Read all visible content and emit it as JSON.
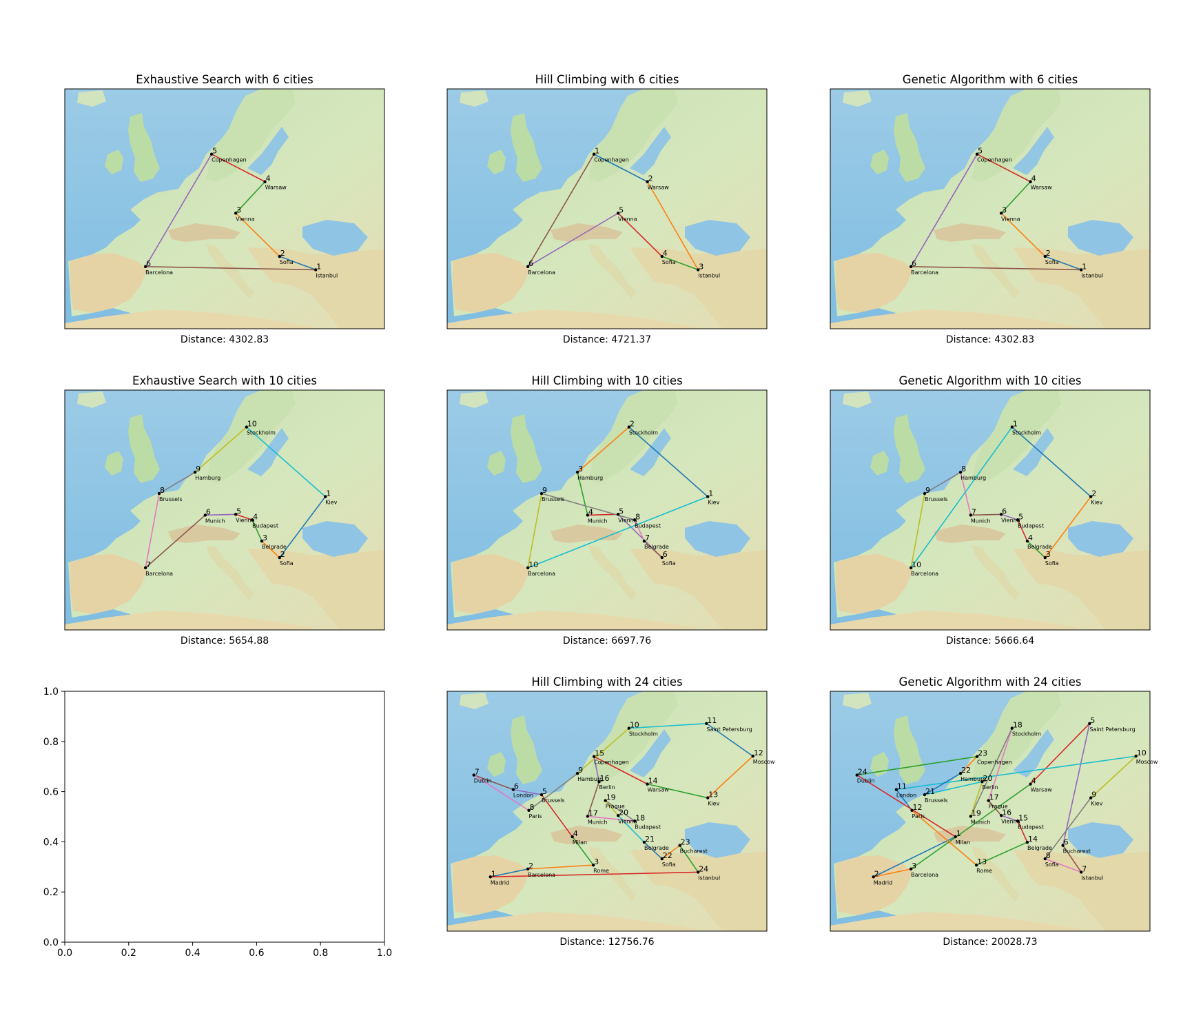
{
  "cities": {
    "Copenhagen": [
      12.6,
      55.7
    ],
    "Warsaw": [
      21.0,
      52.2
    ],
    "Vienna": [
      16.4,
      48.2
    ],
    "Sofia": [
      23.3,
      42.7
    ],
    "Istanbul": [
      28.98,
      41.0
    ],
    "Barcelona": [
      2.2,
      41.4
    ],
    "Stockholm": [
      18.1,
      59.3
    ],
    "Hamburg": [
      10.0,
      53.55
    ],
    "Brussels": [
      4.35,
      50.85
    ],
    "Kiev": [
      30.5,
      50.45
    ],
    "Munich": [
      11.6,
      48.1
    ],
    "Budapest": [
      19.0,
      47.5
    ],
    "Belgrade": [
      20.5,
      44.8
    ],
    "Saint Petersburg": [
      30.3,
      59.9
    ],
    "Moscow": [
      37.6,
      55.75
    ],
    "Dublin": [
      -6.3,
      53.35
    ],
    "London": [
      -0.1,
      51.5
    ],
    "Berlin": [
      13.4,
      52.5
    ],
    "Paris": [
      2.35,
      48.85
    ],
    "Prague": [
      14.4,
      50.1
    ],
    "Milan": [
      9.2,
      45.5
    ],
    "Bucharest": [
      26.1,
      44.4
    ],
    "Madrid": [
      -3.7,
      40.4
    ],
    "Rome": [
      12.5,
      41.9
    ]
  },
  "chart_data": [
    {
      "type": "line",
      "title": "Exhaustive Search with 6 cities",
      "xlabel": "Distance: 4302.83",
      "tour": [
        "Istanbul",
        "Sofia",
        "Vienna",
        "Warsaw",
        "Copenhagen",
        "Barcelona"
      ]
    },
    {
      "type": "line",
      "title": "Hill Climbing with 6 cities",
      "xlabel": "Distance: 4721.37",
      "tour": [
        "Copenhagen",
        "Warsaw",
        "Istanbul",
        "Sofia",
        "Vienna",
        "Barcelona"
      ]
    },
    {
      "type": "line",
      "title": "Genetic Algorithm with 6 cities",
      "xlabel": "Distance: 4302.83",
      "tour": [
        "Istanbul",
        "Sofia",
        "Vienna",
        "Warsaw",
        "Copenhagen",
        "Barcelona"
      ]
    },
    {
      "type": "line",
      "title": "Exhaustive Search with 10 cities",
      "xlabel": "Distance: 5654.88",
      "tour": [
        "Kiev",
        "Sofia",
        "Belgrade",
        "Budapest",
        "Vienna",
        "Munich",
        "Barcelona",
        "Brussels",
        "Hamburg",
        "Stockholm"
      ]
    },
    {
      "type": "line",
      "title": "Hill Climbing with 10 cities",
      "xlabel": "Distance: 6697.76",
      "tour": [
        "Kiev",
        "Stockholm",
        "Hamburg",
        "Munich",
        "Vienna",
        "Sofia",
        "Belgrade",
        "Budapest",
        "Brussels",
        "Barcelona"
      ]
    },
    {
      "type": "line",
      "title": "Genetic Algorithm with 10 cities",
      "xlabel": "Distance: 5666.64",
      "tour": [
        "Stockholm",
        "Kiev",
        "Sofia",
        "Belgrade",
        "Budapest",
        "Vienna",
        "Munich",
        "Hamburg",
        "Brussels",
        "Barcelona"
      ]
    },
    {
      "type": "line",
      "title": "",
      "xlabel": "",
      "empty": true,
      "xlim": [
        0.0,
        1.0
      ],
      "ylim": [
        0.0,
        1.0
      ],
      "xticks": [
        "0.0",
        "0.2",
        "0.4",
        "0.6",
        "0.8",
        "1.0"
      ],
      "yticks": [
        "0.0",
        "0.2",
        "0.4",
        "0.6",
        "0.8",
        "1.0"
      ]
    },
    {
      "type": "line",
      "title": "Hill Climbing with 24 cities",
      "xlabel": "Distance: 12756.76",
      "tour": [
        "Madrid",
        "Barcelona",
        "Rome",
        "Milan",
        "Brussels",
        "London",
        "Dublin",
        "Paris",
        "Hamburg",
        "Stockholm",
        "Saint Petersburg",
        "Moscow",
        "Kiev",
        "Warsaw",
        "Copenhagen",
        "Berlin",
        "Munich",
        "Budapest",
        "Prague",
        "Vienna",
        "Belgrade",
        "Sofia",
        "Bucharest",
        "Istanbul"
      ]
    },
    {
      "type": "line",
      "title": "Genetic Algorithm with 24 cities",
      "xlabel": "Distance: 20028.73",
      "tour": [
        "Milan",
        "Madrid",
        "Barcelona",
        "Warsaw",
        "Saint Petersburg",
        "Bucharest",
        "Istanbul",
        "Sofia",
        "Kiev",
        "Moscow",
        "London",
        "Paris",
        "Rome",
        "Belgrade",
        "Budapest",
        "Vienna",
        "Prague",
        "Stockholm",
        "Munich",
        "Berlin",
        "Brussels",
        "Hamburg",
        "Copenhagen",
        "Dublin"
      ]
    }
  ]
}
